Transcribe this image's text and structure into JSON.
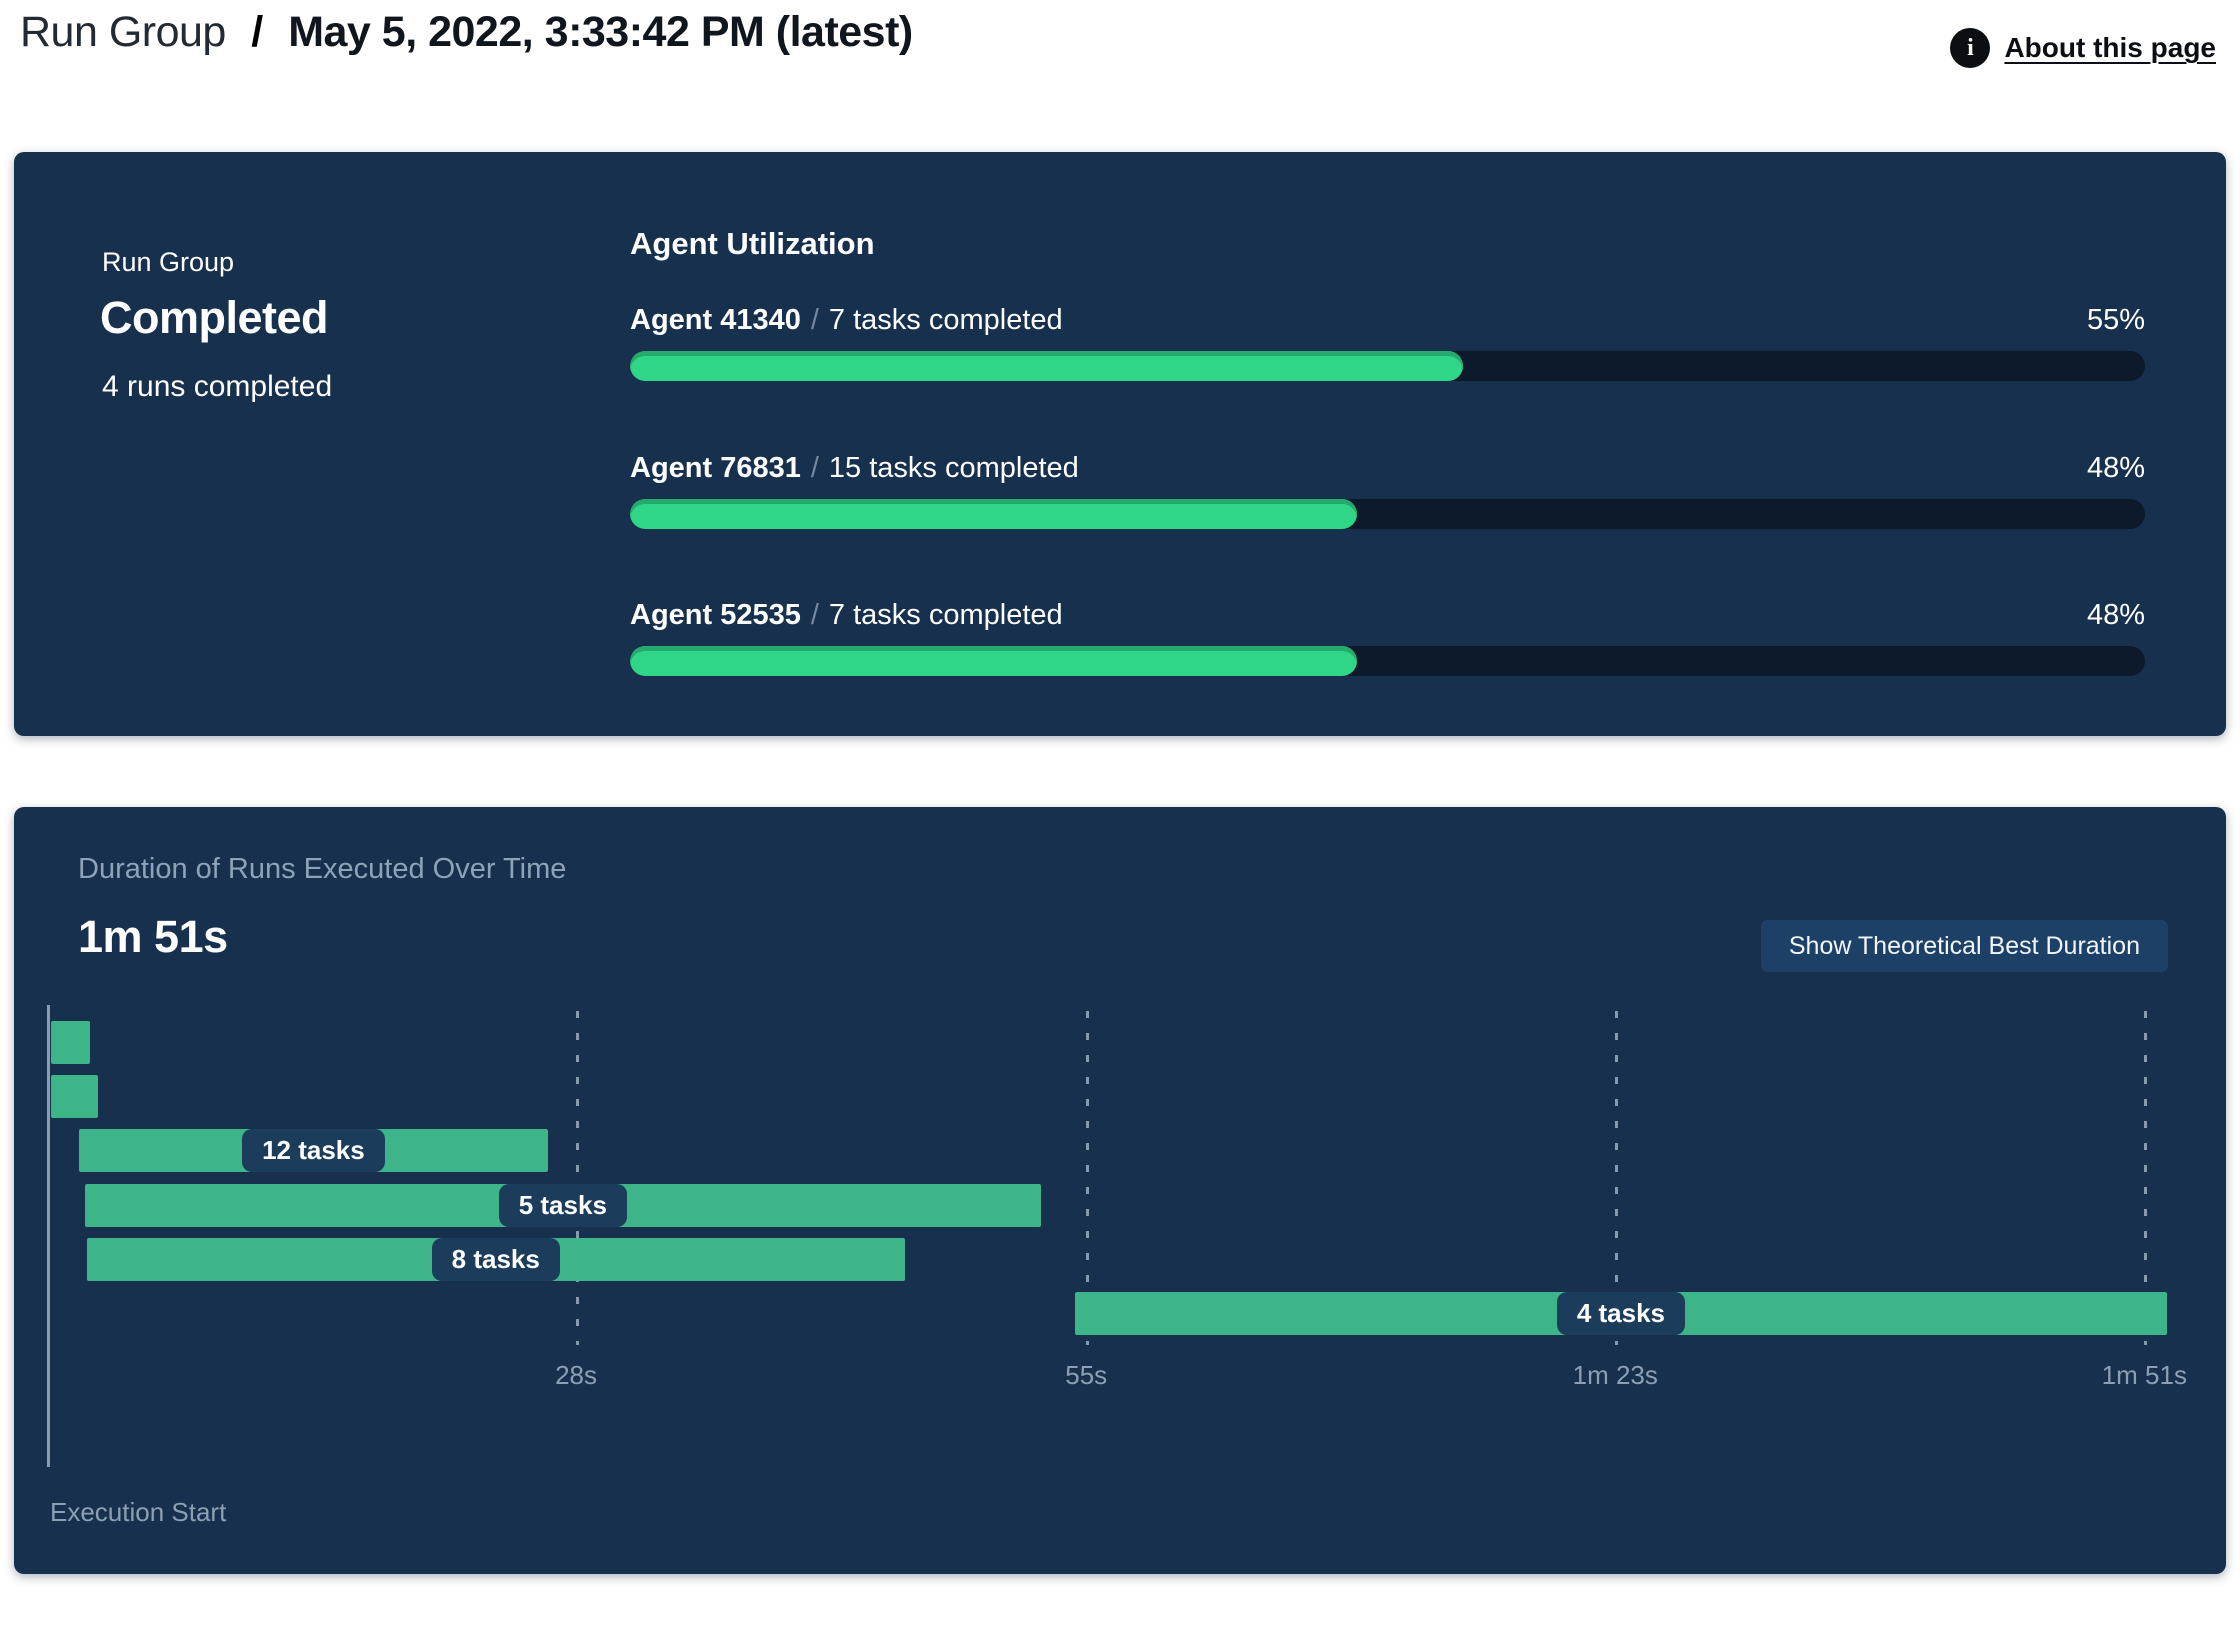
{
  "header": {
    "breadcrumb_root": "Run Group",
    "breadcrumb_separator": "/",
    "breadcrumb_current": "May 5, 2022, 3:33:42 PM (latest)",
    "about_link": "About this page",
    "info_icon_glyph": "i"
  },
  "summary": {
    "label": "Run Group",
    "status": "Completed",
    "runs_completed": "4 runs completed"
  },
  "utilization": {
    "heading": "Agent Utilization",
    "agents": [
      {
        "name": "Agent 41340",
        "separator": "/",
        "tasks": "7 tasks completed",
        "percent_label": "55%",
        "percent_value": 55
      },
      {
        "name": "Agent 76831",
        "separator": "/",
        "tasks": "15 tasks completed",
        "percent_label": "48%",
        "percent_value": 48
      },
      {
        "name": "Agent 52535",
        "separator": "/",
        "tasks": "7 tasks completed",
        "percent_label": "48%",
        "percent_value": 48
      }
    ]
  },
  "duration_panel": {
    "title": "Duration of Runs Executed Over Time",
    "total_duration": "1m 51s",
    "button_label": "Show Theoretical Best Duration",
    "origin_label": "Execution Start"
  },
  "chart_data": {
    "type": "gantt",
    "title": "Duration of Runs Executed Over Time",
    "total_duration": "1m 51s",
    "time_domain_seconds": [
      0,
      112.2
    ],
    "ticks": [
      {
        "label": "28s",
        "seconds": 28
      },
      {
        "label": "55s",
        "seconds": 55
      },
      {
        "label": "1m 23s",
        "seconds": 83
      },
      {
        "label": "1m 51s",
        "seconds": 111
      }
    ],
    "runs": [
      {
        "label": "",
        "start_s": 0.2,
        "end_s": 2.3
      },
      {
        "label": "",
        "start_s": 0.2,
        "end_s": 2.7
      },
      {
        "label": "12 tasks",
        "start_s": 1.7,
        "end_s": 26.5
      },
      {
        "label": "5 tasks",
        "start_s": 2.0,
        "end_s": 52.6
      },
      {
        "label": "8 tasks",
        "start_s": 2.1,
        "end_s": 45.4
      },
      {
        "label": "4 tasks",
        "start_s": 54.4,
        "end_s": 112.2
      }
    ],
    "legend_position": "none",
    "grid": "dashed-vertical"
  },
  "colors": {
    "panel_bg": "#16304E",
    "accent_purple": "#7A52F4",
    "progress_fill": "#2FD687",
    "progress_track": "#0C1A2C",
    "gantt_bar": "#3EB489",
    "pill_bg": "#1C3C5C",
    "muted_text": "#8DA0B3",
    "button_bg": "#1D4166"
  }
}
